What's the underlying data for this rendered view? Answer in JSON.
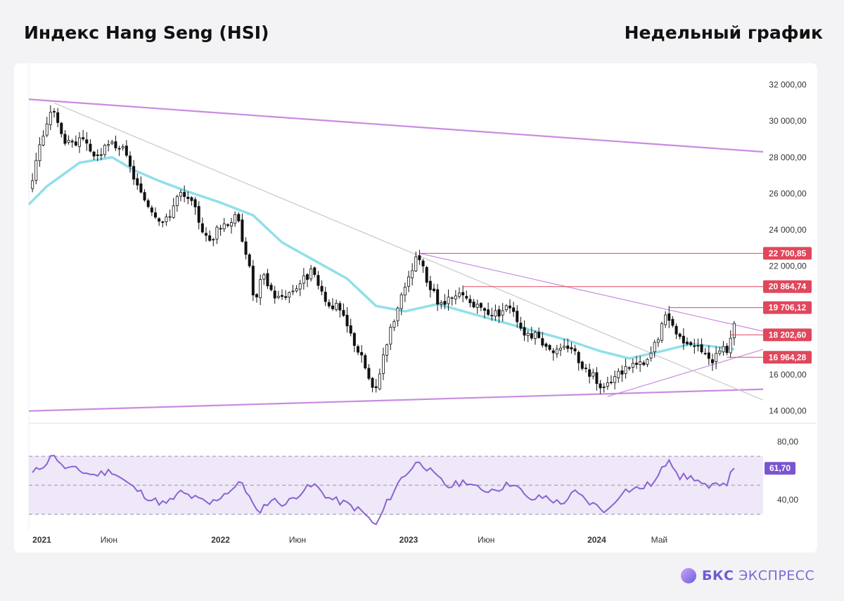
{
  "header": {
    "title_left": "Индекс Hang Seng (HSI)",
    "title_right": "Недельный график"
  },
  "brand": {
    "bold": "БКС",
    "light": "ЭКСПРЕСС"
  },
  "colors": {
    "up": "#ffffff",
    "down": "#111111",
    "wick": "#111111",
    "ma": "#8fe0ea",
    "channel": "#c98be0",
    "trend": "#c8c8c8",
    "level": "#e0475b",
    "rsi": "#8a63d2",
    "rsi_fill": "#eee8f8",
    "rsi_badge": "#7a55d0"
  },
  "chart_data": [
    {
      "type": "candlestick",
      "instrument": "Hang Seng (HSI)",
      "timeframe": "weekly",
      "y_axis": {
        "range": [
          13600,
          32800
        ],
        "ticks": [
          14000,
          16000,
          22000,
          24000,
          26000,
          28000,
          30000,
          32000
        ],
        "tick_labels": [
          "14 000,00",
          "16 000,00",
          "22 000,00",
          "24 000,00",
          "26 000,00",
          "28 000,00",
          "30 000,00",
          "32 000,00"
        ],
        "position": "right"
      },
      "x_axis": {
        "range": [
          "2020-12-28",
          "2024-11-18"
        ],
        "ticks": [
          {
            "label": "2021",
            "date": "2021-01-04",
            "bold": true
          },
          {
            "label": "Июн",
            "date": "2021-06-01",
            "bold": false
          },
          {
            "label": "2022",
            "date": "2022-01-03",
            "bold": true
          },
          {
            "label": "Июн",
            "date": "2022-06-01",
            "bold": false
          },
          {
            "label": "2023",
            "date": "2023-01-02",
            "bold": true
          },
          {
            "label": "Июн",
            "date": "2023-06-01",
            "bold": false
          },
          {
            "label": "2024",
            "date": "2024-01-01",
            "bold": true
          },
          {
            "label": "Май",
            "date": "2024-05-01",
            "bold": false
          }
        ]
      },
      "anchors": [
        [
          "2021-01-04",
          26300
        ],
        [
          "2021-01-18",
          28500
        ],
        [
          "2021-02-01",
          29300
        ],
        [
          "2021-02-15",
          31000
        ],
        [
          "2021-03-01",
          29400
        ],
        [
          "2021-03-22",
          28600
        ],
        [
          "2021-04-12",
          28900
        ],
        [
          "2021-05-10",
          28000
        ],
        [
          "2021-06-07",
          28700
        ],
        [
          "2021-06-28",
          28600
        ],
        [
          "2021-07-19",
          27200
        ],
        [
          "2021-08-02",
          26100
        ],
        [
          "2021-08-23",
          25300
        ],
        [
          "2021-09-20",
          24300
        ],
        [
          "2021-10-18",
          26000
        ],
        [
          "2021-11-15",
          25300
        ],
        [
          "2021-12-13",
          23300
        ],
        [
          "2022-01-10",
          24300
        ],
        [
          "2022-02-07",
          24700
        ],
        [
          "2022-02-28",
          22500
        ],
        [
          "2022-03-14",
          19800
        ],
        [
          "2022-03-28",
          21500
        ],
        [
          "2022-04-25",
          20200
        ],
        [
          "2022-05-23",
          20600
        ],
        [
          "2022-06-13",
          21200
        ],
        [
          "2022-07-04",
          21700
        ],
        [
          "2022-07-25",
          20100
        ],
        [
          "2022-08-22",
          19700
        ],
        [
          "2022-09-19",
          18000
        ],
        [
          "2022-10-10",
          16700
        ],
        [
          "2022-10-31",
          14800
        ],
        [
          "2022-11-21",
          17600
        ],
        [
          "2022-12-12",
          19400
        ],
        [
          "2023-01-09",
          21500
        ],
        [
          "2023-01-23",
          22600
        ],
        [
          "2023-02-13",
          21000
        ],
        [
          "2023-03-06",
          19800
        ],
        [
          "2023-03-27",
          20100
        ],
        [
          "2023-04-17",
          20400
        ],
        [
          "2023-05-15",
          19700
        ],
        [
          "2023-06-05",
          19500
        ],
        [
          "2023-06-26",
          19400
        ],
        [
          "2023-07-24",
          19900
        ],
        [
          "2023-08-14",
          18400
        ],
        [
          "2023-09-04",
          18200
        ],
        [
          "2023-10-02",
          17600
        ],
        [
          "2023-10-23",
          17200
        ],
        [
          "2023-11-13",
          17700
        ],
        [
          "2023-12-11",
          16400
        ],
        [
          "2024-01-22",
          15200
        ],
        [
          "2024-02-12",
          16000
        ],
        [
          "2024-03-11",
          16600
        ],
        [
          "2024-04-08",
          16500
        ],
        [
          "2024-04-22",
          17400
        ],
        [
          "2024-05-20",
          19400
        ],
        [
          "2024-06-10",
          18100
        ],
        [
          "2024-07-08",
          17800
        ],
        [
          "2024-07-29",
          17200
        ],
        [
          "2024-08-12",
          16600
        ],
        [
          "2024-08-26",
          17600
        ],
        [
          "2024-09-09",
          17300
        ],
        [
          "2024-09-16",
          17400
        ],
        [
          "2024-09-23",
          18900
        ]
      ],
      "moving_average": [
        [
          "2020-12-28",
          25400
        ],
        [
          "2021-02-01",
          26400
        ],
        [
          "2021-04-05",
          27700
        ],
        [
          "2021-06-07",
          28000
        ],
        [
          "2021-07-19",
          27300
        ],
        [
          "2021-09-06",
          26700
        ],
        [
          "2021-11-01",
          26100
        ],
        [
          "2022-01-03",
          25500
        ],
        [
          "2022-03-07",
          24800
        ],
        [
          "2022-05-02",
          23300
        ],
        [
          "2022-07-04",
          22300
        ],
        [
          "2022-09-05",
          21300
        ],
        [
          "2022-10-31",
          19800
        ],
        [
          "2022-12-26",
          19500
        ],
        [
          "2023-02-27",
          19900
        ],
        [
          "2023-05-01",
          19400
        ],
        [
          "2023-07-03",
          18900
        ],
        [
          "2023-09-04",
          18400
        ],
        [
          "2023-11-06",
          17900
        ],
        [
          "2024-01-08",
          17300
        ],
        [
          "2024-03-04",
          16900
        ],
        [
          "2024-05-06",
          17300
        ],
        [
          "2024-07-01",
          17700
        ],
        [
          "2024-09-02",
          17500
        ],
        [
          "2024-09-23",
          17400
        ]
      ],
      "trend_lines": [
        {
          "kind": "channel",
          "from": [
            "2020-12-28",
            31200
          ],
          "to": [
            "2024-11-18",
            28300
          ]
        },
        {
          "kind": "channel",
          "from": [
            "2020-12-28",
            14000
          ],
          "to": [
            "2024-11-18",
            15200
          ]
        },
        {
          "kind": "resistance",
          "from": [
            "2023-01-23",
            22700
          ],
          "to": [
            "2024-11-18",
            18400
          ]
        },
        {
          "kind": "support",
          "from": [
            "2024-01-22",
            14800
          ],
          "to": [
            "2024-11-18",
            17400
          ]
        },
        {
          "kind": "long-term",
          "from": [
            "2021-02-15",
            31000
          ],
          "to": [
            "2024-11-18",
            14600
          ]
        }
      ],
      "levels": [
        {
          "value": 22700.85,
          "label": "22 700,85",
          "from": "2023-01-23"
        },
        {
          "value": 20864.74,
          "label": "20 864,74",
          "from": "2023-04-17"
        },
        {
          "value": 19706.12,
          "label": "19 706,12",
          "from": "2024-05-20"
        },
        {
          "value": 18202.6,
          "label": "18 202,60",
          "from": "2024-09-16"
        },
        {
          "value": 16964.28,
          "label": "16 964,28",
          "from": "2024-09-09"
        }
      ]
    },
    {
      "type": "line",
      "indicator": "RSI",
      "y_axis": {
        "range": [
          22,
          88
        ],
        "ticks": [
          40,
          80
        ],
        "tick_labels": [
          "40,00",
          "80,00"
        ],
        "band": [
          30,
          70
        ],
        "mid": 50,
        "position": "right"
      },
      "current": {
        "value": 61.7,
        "label": "61,70"
      },
      "anchors": [
        [
          "2021-01-04",
          58
        ],
        [
          "2021-02-01",
          66
        ],
        [
          "2021-02-15",
          72
        ],
        [
          "2021-03-01",
          63
        ],
        [
          "2021-04-05",
          60
        ],
        [
          "2021-05-03",
          57
        ],
        [
          "2021-06-07",
          60
        ],
        [
          "2021-07-19",
          48
        ],
        [
          "2021-08-23",
          40
        ],
        [
          "2021-09-20",
          37
        ],
        [
          "2021-10-18",
          45
        ],
        [
          "2021-11-15",
          41
        ],
        [
          "2021-12-13",
          37
        ],
        [
          "2022-01-10",
          44
        ],
        [
          "2022-02-14",
          52
        ],
        [
          "2022-03-14",
          31
        ],
        [
          "2022-04-11",
          40
        ],
        [
          "2022-05-09",
          37
        ],
        [
          "2022-06-13",
          47
        ],
        [
          "2022-07-04",
          50
        ],
        [
          "2022-08-01",
          41
        ],
        [
          "2022-09-05",
          37
        ],
        [
          "2022-10-03",
          32
        ],
        [
          "2022-10-31",
          22
        ],
        [
          "2022-11-21",
          38
        ],
        [
          "2022-12-19",
          55
        ],
        [
          "2023-01-23",
          67
        ],
        [
          "2023-02-20",
          57
        ],
        [
          "2023-03-20",
          49
        ],
        [
          "2023-04-24",
          53
        ],
        [
          "2023-05-22",
          46
        ],
        [
          "2023-06-26",
          48
        ],
        [
          "2023-07-24",
          52
        ],
        [
          "2023-08-21",
          40
        ],
        [
          "2023-09-25",
          42
        ],
        [
          "2023-10-23",
          37
        ],
        [
          "2023-11-20",
          45
        ],
        [
          "2023-12-18",
          38
        ],
        [
          "2024-01-22",
          32
        ],
        [
          "2024-02-19",
          46
        ],
        [
          "2024-03-25",
          48
        ],
        [
          "2024-04-22",
          52
        ],
        [
          "2024-05-20",
          69
        ],
        [
          "2024-06-10",
          56
        ],
        [
          "2024-07-08",
          55
        ],
        [
          "2024-08-05",
          47
        ],
        [
          "2024-08-26",
          52
        ],
        [
          "2024-09-09",
          52
        ],
        [
          "2024-09-23",
          61.7
        ]
      ]
    }
  ]
}
